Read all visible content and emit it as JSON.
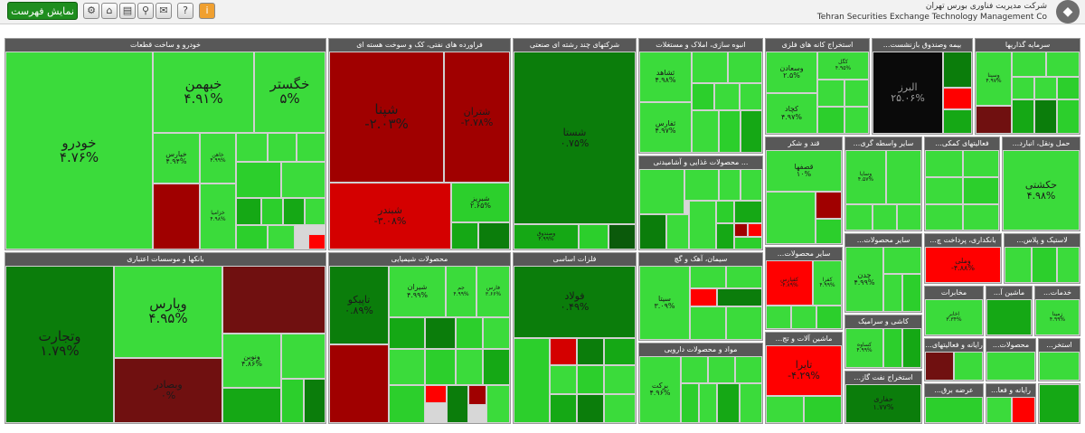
{
  "toolbar": {
    "show_list_label": "نمایش فهرست",
    "icons": [
      "info-icon",
      "help-icon",
      "message-icon",
      "table-icon",
      "home-icon",
      "search-icon",
      "settings-icon"
    ]
  },
  "company": {
    "name_fa": "شرکت مدیریت فناوری بورس تهران",
    "name_en": "Tehran Securities Exchange Technology Management Co"
  },
  "sectors": {
    "auto": "خودرو و ساخت قطعات",
    "petro": "فراورده های نفتی، کک و سوخت هسته ای",
    "multi": "شرکتهای چند رشته ای صنعتی",
    "realestate": "انبوه سازی، املاک و مستغلات",
    "mining": "استخراج کانه های فلزی",
    "invest": "...بیمه وصندوق بازنشست",
    "investments": "سرمایه گذاریها",
    "banks": "بانکها و موسسات اعتباری",
    "chemicals": "محصولات شیمیایی",
    "metals": "فلزات اساسی",
    "food": "محصولات غذایی و آشامیدنی ...",
    "sugar": "قند و شکر",
    "transport": "...سایر واسطه گری",
    "aux": "...فعالیتهای کمکی",
    "transportation": "...حمل ونقل، انبارد",
    "cement": "سیمان، آهک و گچ",
    "mineral": "...سایر محصولات",
    "nonmetal": "...سایر محصولات",
    "tech": "...رایانه و فعالیتهای",
    "payment": "...بانکداری، پرداخت چ",
    "plastic": "...لاستیک و پلاس",
    "pharma": "مواد و محصولات دارویی",
    "machinery": "...ماشین آلات و تج",
    "ceramic": "کاشی و سرامیک",
    "telecom": "مخابرات",
    "engineering": "...ماشین آ",
    "services": "...خدمات",
    "computer": "...رایانه و فعا",
    "oil": "...استخراج نفت گاز",
    "retail": "...عرضه برق",
    "products": "...محصولات",
    "misc": "...استخر"
  },
  "tiles": {
    "khodro": {
      "s": "خودرو",
      "p": "۴.۷۶%"
    },
    "khbahman": {
      "s": "خبهمن",
      "p": "۴.۹۱%"
    },
    "khgostar": {
      "s": "خگستر",
      "p": "۵%"
    },
    "khpars": {
      "s": "خپارس",
      "p": "۴.۹۴%"
    },
    "khavin": {
      "s": "خاهن",
      "p": "۴.۹۹%"
    },
    "khzamya": {
      "s": "خزامیا",
      "p": "۴.۹۸%"
    },
    "shepna": {
      "s": "شپنا",
      "p": "-۲.۰۳%"
    },
    "shetran": {
      "s": "شتران",
      "p": "-۲.۷۸%"
    },
    "shebandar": {
      "s": "شبندر",
      "p": "-۳.۰۸%"
    },
    "shebriz": {
      "s": "شبریز",
      "p": "۲.۶۵%"
    },
    "shasta": {
      "s": "شستا",
      "p": "۰.۷۵%"
    },
    "vasandogh": {
      "s": "وصندوق",
      "p": "۴.۹۹%"
    },
    "sheshaid": {
      "s": "ثشاهد",
      "p": "۴.۹۸%"
    },
    "sefars": {
      "s": "ثفارس",
      "p": "۴.۹۷%"
    },
    "kama": {
      "s": "وسعادن",
      "p": "۲.۵%"
    },
    "kajad": {
      "s": "کچاد",
      "p": "۴.۹۷%"
    },
    "kagol": {
      "s": "کگل",
      "p": "۴.۹۵%"
    },
    "alborz": {
      "s": "البرز",
      "p": "۲۵.۰۶%"
    },
    "vasina": {
      "s": "وسینا",
      "p": "۴.۹۷%"
    },
    "vatejarat": {
      "s": "وتجارت",
      "p": "۱.۷۹%"
    },
    "vapars": {
      "s": "وپارس",
      "p": "۴.۹۵%"
    },
    "vanovin": {
      "s": "ونوین",
      "p": "۴.۸۶%"
    },
    "vabsader": {
      "s": "وبصادر",
      "p": "۰%"
    },
    "tapiko": {
      "s": "تاپیکو",
      "p": "۰.۸۹%"
    },
    "shiran": {
      "s": "شیران",
      "p": "۴.۹۹%"
    },
    "jam": {
      "s": "جم",
      "p": "۴.۹۹%"
    },
    "fars": {
      "s": "فارس",
      "p": "۳.۶۶%"
    },
    "fooolad": {
      "s": "فولاد",
      "p": "۰.۴۹%"
    },
    "ghasoha": {
      "s": "قصفها",
      "p": "۱۰%"
    },
    "vasapa": {
      "s": "وسایا",
      "p": "۴.۵۷%"
    },
    "haksti": {
      "s": "حکشتی",
      "p": "۴.۹۸%"
    },
    "sita": {
      "s": "سیتا",
      "p": "۳.۰۹%"
    },
    "chedan": {
      "s": "چدن",
      "p": "۴.۹۹%"
    },
    "vamli": {
      "s": "وملی",
      "p": "-۴.۸۸%"
    },
    "barket": {
      "s": "برکت",
      "p": "۴.۹۶%"
    },
    "tapra": {
      "s": "تایرا",
      "p": "-۴.۲۹%"
    },
    "akhabar": {
      "s": "اخابر",
      "p": "۳.۳۴%"
    },
    "hafari": {
      "s": "حفاری",
      "p": "۱.۷۷%"
    },
    "kafara": {
      "s": "کفرا",
      "p": "۴.۹۹%"
    },
    "kaghdran": {
      "s": "کفپارس",
      "p": "-۴.۸۹%"
    },
    "zemin": {
      "s": "زمینا",
      "p": "۴.۹۹%"
    },
    "faghadir": {
      "s": "غگل",
      "p": "۴.۹۳%"
    },
    "kasova": {
      "s": "کساوه",
      "p": "۴.۹۹%"
    }
  }
}
